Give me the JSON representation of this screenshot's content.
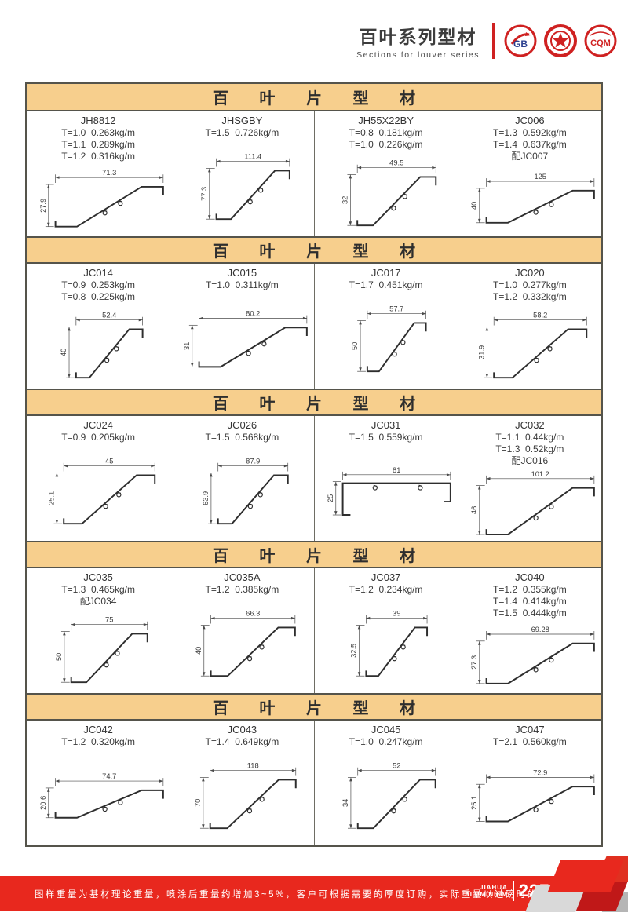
{
  "header": {
    "title": "百叶系列型材",
    "subtitle": "Sections for louver series",
    "logos": [
      {
        "name": "gb-logo",
        "label": "GB"
      },
      {
        "name": "certification-seal",
        "label": "✶"
      },
      {
        "name": "cqm-logo",
        "label": "CQM"
      }
    ]
  },
  "section_title": "百 叶 片 型 材",
  "sections": [
    {
      "cells": [
        {
          "code": "JH8812",
          "specs": [
            "T=1.0  0.263kg/m",
            "T=1.1  0.289kg/m",
            "T=1.2  0.316kg/m"
          ],
          "width": "71.3",
          "height": "27.9",
          "shape": "slat"
        },
        {
          "code": "JHSGBY",
          "specs": [
            "T=1.5  0.726kg/m"
          ],
          "width": "111.4",
          "height": "77.3",
          "shape": "slat"
        },
        {
          "code": "JH55X22BY",
          "specs": [
            "T=0.8  0.181kg/m",
            "T=1.0  0.226kg/m"
          ],
          "width": "49.5",
          "height": "32",
          "shape": "slat"
        },
        {
          "code": "JC006",
          "specs": [
            "T=1.3  0.592kg/m",
            "T=1.4  0.637kg/m",
            "配JC007"
          ],
          "width": "125",
          "height": "40",
          "shape": "slat"
        }
      ]
    },
    {
      "cells": [
        {
          "code": "JC014",
          "specs": [
            "T=0.9  0.253kg/m",
            "T=0.8  0.225kg/m"
          ],
          "width": "52.4",
          "height": "40",
          "shape": "slat"
        },
        {
          "code": "JC015",
          "specs": [
            "T=1.0  0.311kg/m"
          ],
          "width": "80.2",
          "height": "31",
          "shape": "slat"
        },
        {
          "code": "JC017",
          "specs": [
            "T=1.7  0.451kg/m"
          ],
          "width": "57.7",
          "height": "50",
          "shape": "slat"
        },
        {
          "code": "JC020",
          "specs": [
            "T=1.0  0.277kg/m",
            "T=1.2  0.332kg/m"
          ],
          "width": "58.2",
          "height": "31.9",
          "shape": "slat"
        }
      ]
    },
    {
      "cells": [
        {
          "code": "JC024",
          "specs": [
            "T=0.9  0.205kg/m"
          ],
          "width": "45",
          "height": "25.1",
          "shape": "slat"
        },
        {
          "code": "JC026",
          "specs": [
            "T=1.5  0.568kg/m"
          ],
          "width": "87.9",
          "height": "63.9",
          "shape": "slat"
        },
        {
          "code": "JC031",
          "specs": [
            "T=1.5  0.559kg/m"
          ],
          "width": "81",
          "height": "25",
          "shape": "flat"
        },
        {
          "code": "JC032",
          "specs": [
            "T=1.1  0.44kg/m",
            "T=1.3  0.52kg/m",
            "配JC016"
          ],
          "width": "101.2",
          "height": "46",
          "shape": "slat"
        }
      ]
    },
    {
      "cells": [
        {
          "code": "JC035",
          "specs": [
            "T=1.3  0.465kg/m",
            "配JC034"
          ],
          "width": "75",
          "height": "50",
          "shape": "slat"
        },
        {
          "code": "JC035A",
          "specs": [
            "T=1.2  0.385kg/m"
          ],
          "width": "66.3",
          "height": "40",
          "shape": "slat"
        },
        {
          "code": "JC037",
          "specs": [
            "T=1.2  0.234kg/m"
          ],
          "width": "39",
          "height": "32.5",
          "shape": "slat"
        },
        {
          "code": "JC040",
          "specs": [
            "T=1.2  0.355kg/m",
            "T=1.4  0.414kg/m",
            "T=1.5  0.444kg/m"
          ],
          "width": "69.28",
          "height": "27.3",
          "shape": "slat"
        }
      ]
    },
    {
      "cells": [
        {
          "code": "JC042",
          "specs": [
            "T=1.2  0.320kg/m"
          ],
          "width": "74.7",
          "height": "20.6",
          "shape": "slat"
        },
        {
          "code": "JC043",
          "specs": [
            "T=1.4  0.649kg/m"
          ],
          "width": "118",
          "height": "70",
          "shape": "slat"
        },
        {
          "code": "JC045",
          "specs": [
            "T=1.0  0.247kg/m"
          ],
          "width": "52",
          "height": "34",
          "shape": "slat"
        },
        {
          "code": "JC047",
          "specs": [
            "T=2.1  0.560kg/m"
          ],
          "width": "72.9",
          "height": "25.1",
          "shape": "slat"
        }
      ]
    }
  ],
  "footer": {
    "note": "图样重量为基材理论重量，喷涂后重量约增加3~5%，客户可根据需要的厚度订购，实际重量以过磅时的重量为准。",
    "brand_line1": "JIAHUA",
    "brand_line2": "ALUMINIUM",
    "page": "227"
  },
  "colors": {
    "band_bg": "#f7cf8d",
    "table_border": "#55544b",
    "footer_red": "#e8281e",
    "logo_red": "#cf2121",
    "line_dark": "#2e2e2e"
  }
}
